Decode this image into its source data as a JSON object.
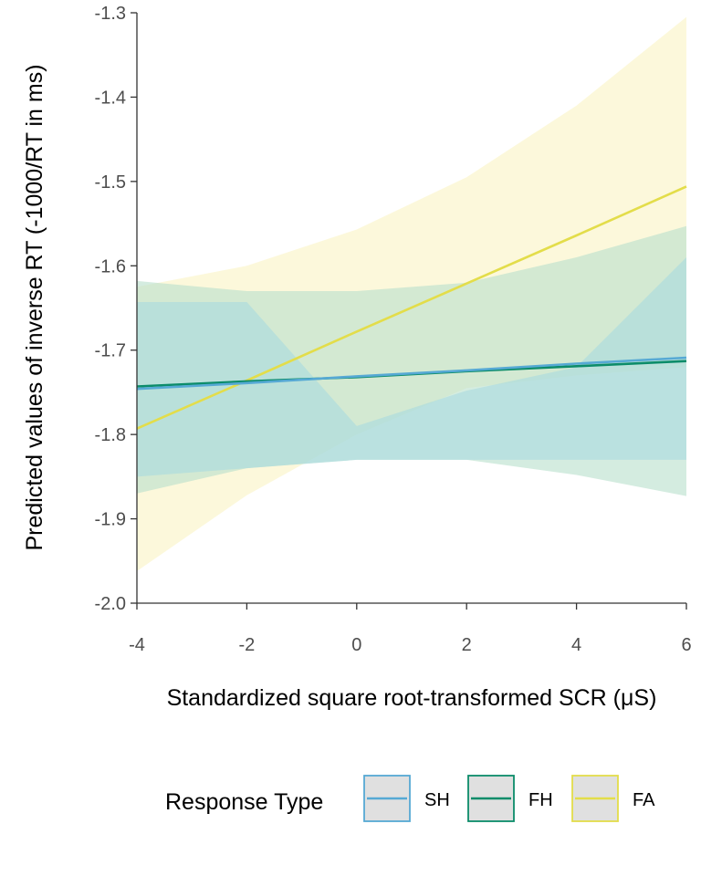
{
  "chart_data": {
    "type": "line",
    "xlabel": "Standardized square root-transformed SCR (μS)",
    "ylabel": "Predicted values of inverse RT (-1000/RT in ms)",
    "xlim": [
      -4,
      6
    ],
    "ylim": [
      -2.0,
      -1.3
    ],
    "xticks": [
      -4,
      -2,
      0,
      2,
      4,
      6
    ],
    "xtick_labels": [
      "-4",
      "-2",
      "0",
      "2",
      "4",
      "6"
    ],
    "yticks": [
      -1.3,
      -1.4,
      -1.5,
      -1.6,
      -1.7,
      -1.8,
      -1.9,
      -2.0
    ],
    "ytick_labels": [
      "-1.3",
      "-1.4",
      "-1.5",
      "-1.6",
      "-1.7",
      "-1.8",
      "-1.9",
      "-2.0"
    ],
    "grid": false,
    "legend": {
      "title": "Response Type",
      "position": "bottom"
    },
    "series": [
      {
        "name": "SH",
        "color": "#56a9d4",
        "band_color": "#a8dbe0",
        "x": [
          -4,
          -2,
          0,
          2,
          4,
          6
        ],
        "y": [
          -1.746,
          -1.739,
          -1.731,
          -1.724,
          -1.716,
          -1.709
        ],
        "lower": [
          -1.85,
          -1.84,
          -1.83,
          -1.83,
          -1.83,
          -1.83
        ],
        "upper": [
          -1.643,
          -1.643,
          -1.79,
          -1.748,
          -1.72,
          -1.59
        ]
      },
      {
        "name": "FH",
        "color": "#0c8c6a",
        "band_color": "#b7e0cc",
        "x": [
          -4,
          -2,
          0,
          2,
          4,
          6
        ],
        "y": [
          -1.743,
          -1.737,
          -1.732,
          -1.725,
          -1.719,
          -1.713
        ],
        "lower": [
          -1.87,
          -1.84,
          -1.83,
          -1.83,
          -1.848,
          -1.873
        ],
        "upper": [
          -1.618,
          -1.63,
          -1.63,
          -1.62,
          -1.59,
          -1.553
        ]
      },
      {
        "name": "FA",
        "color": "#e3dd4a",
        "band_color": "#fbf5cf",
        "x": [
          -4,
          -2,
          0,
          2,
          4,
          6
        ],
        "y": [
          -1.793,
          -1.736,
          -1.678,
          -1.621,
          -1.564,
          -1.506
        ],
        "lower": [
          -1.962,
          -1.872,
          -1.8,
          -1.745,
          -1.73,
          -1.72
        ],
        "upper": [
          -1.625,
          -1.6,
          -1.557,
          -1.495,
          -1.41,
          -1.305
        ]
      }
    ]
  }
}
